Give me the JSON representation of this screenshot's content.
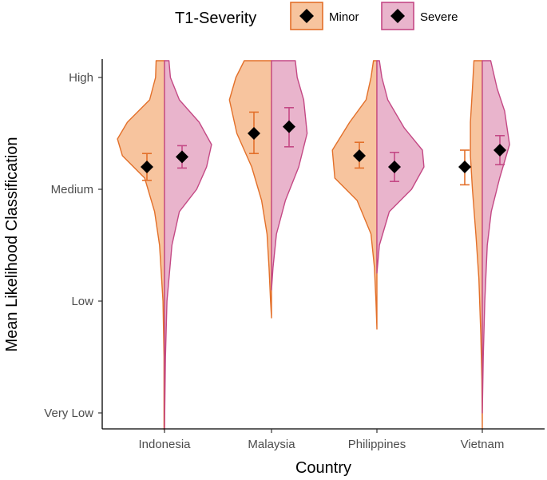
{
  "chart_data": {
    "type": "split-violin",
    "xlabel": "Country",
    "ylabel": "Mean Likelihood Classification",
    "categories": [
      "Indonesia",
      "Malaysia",
      "Philippines",
      "Vietnam"
    ],
    "y_ticks": [
      {
        "value": 1,
        "label": "Very Low"
      },
      {
        "value": 2,
        "label": "Low"
      },
      {
        "value": 3,
        "label": "Medium"
      },
      {
        "value": 4,
        "label": "High"
      }
    ],
    "ylim": [
      0.85,
      4.15
    ],
    "legend": {
      "title": "T1-Severity",
      "position": "top",
      "entries": [
        "Minor",
        "Severe"
      ]
    },
    "colors": {
      "Minor": {
        "fill": "#f7c49e",
        "stroke": "#e3702a",
        "errorbar": "#e3702a"
      },
      "Severe": {
        "fill": "#e9b4cc",
        "stroke": "#c44985",
        "errorbar": "#c44985"
      }
    },
    "series": [
      {
        "name": "Minor",
        "means": [
          3.2,
          3.5,
          3.3,
          3.2
        ],
        "ci_low": [
          3.08,
          3.32,
          3.19,
          3.04
        ],
        "ci_high": [
          3.32,
          3.69,
          3.42,
          3.35
        ],
        "violin_ymin": [
          0.85,
          1.85,
          1.75,
          0.85
        ],
        "violin_ymax": [
          4.15,
          4.15,
          4.15,
          4.15
        ],
        "density": [
          [
            [
              0.85,
              0.01
            ],
            [
              1.5,
              0.01
            ],
            [
              2.0,
              0.03
            ],
            [
              2.5,
              0.1
            ],
            [
              2.8,
              0.2
            ],
            [
              3.1,
              0.4
            ],
            [
              3.3,
              0.85
            ],
            [
              3.45,
              0.95
            ],
            [
              3.6,
              0.75
            ],
            [
              3.8,
              0.3
            ],
            [
              4.0,
              0.18
            ],
            [
              4.15,
              0.17
            ]
          ],
          [
            [
              1.85,
              0.0
            ],
            [
              2.0,
              0.02
            ],
            [
              2.3,
              0.05
            ],
            [
              2.6,
              0.09
            ],
            [
              2.9,
              0.2
            ],
            [
              3.2,
              0.4
            ],
            [
              3.5,
              0.7
            ],
            [
              3.8,
              0.85
            ],
            [
              4.0,
              0.72
            ],
            [
              4.15,
              0.55
            ]
          ],
          [
            [
              1.75,
              0.0
            ],
            [
              2.0,
              0.02
            ],
            [
              2.3,
              0.05
            ],
            [
              2.6,
              0.12
            ],
            [
              2.9,
              0.4
            ],
            [
              3.1,
              0.85
            ],
            [
              3.35,
              0.9
            ],
            [
              3.6,
              0.55
            ],
            [
              3.8,
              0.22
            ],
            [
              4.0,
              0.12
            ],
            [
              4.15,
              0.07
            ]
          ],
          [
            [
              0.85,
              0.0
            ],
            [
              1.3,
              0.01
            ],
            [
              1.7,
              0.03
            ],
            [
              2.2,
              0.07
            ],
            [
              2.6,
              0.13
            ],
            [
              3.0,
              0.2
            ],
            [
              3.3,
              0.24
            ],
            [
              3.6,
              0.24
            ],
            [
              3.9,
              0.2
            ],
            [
              4.15,
              0.17
            ]
          ]
        ]
      },
      {
        "name": "Severe",
        "means": [
          3.29,
          3.56,
          3.2,
          3.35
        ],
        "ci_low": [
          3.19,
          3.38,
          3.07,
          3.22
        ],
        "ci_high": [
          3.39,
          3.73,
          3.33,
          3.48
        ],
        "violin_ymin": [
          0.85,
          2.1,
          2.25,
          1.0
        ],
        "violin_ymax": [
          4.15,
          4.15,
          4.15,
          4.15
        ],
        "density": [
          [
            [
              0.85,
              0.0
            ],
            [
              1.5,
              0.02
            ],
            [
              2.0,
              0.05
            ],
            [
              2.5,
              0.15
            ],
            [
              2.8,
              0.3
            ],
            [
              3.0,
              0.65
            ],
            [
              3.2,
              0.85
            ],
            [
              3.4,
              0.95
            ],
            [
              3.6,
              0.7
            ],
            [
              3.8,
              0.3
            ],
            [
              4.0,
              0.12
            ],
            [
              4.15,
              0.09
            ]
          ],
          [
            [
              2.1,
              0.0
            ],
            [
              2.3,
              0.03
            ],
            [
              2.6,
              0.1
            ],
            [
              2.9,
              0.28
            ],
            [
              3.2,
              0.55
            ],
            [
              3.5,
              0.72
            ],
            [
              3.8,
              0.65
            ],
            [
              4.0,
              0.52
            ],
            [
              4.15,
              0.48
            ]
          ],
          [
            [
              2.25,
              0.0
            ],
            [
              2.5,
              0.05
            ],
            [
              2.8,
              0.25
            ],
            [
              3.0,
              0.7
            ],
            [
              3.2,
              0.95
            ],
            [
              3.35,
              0.92
            ],
            [
              3.55,
              0.55
            ],
            [
              3.8,
              0.22
            ],
            [
              4.0,
              0.1
            ],
            [
              4.15,
              0.05
            ]
          ],
          [
            [
              1.0,
              0.0
            ],
            [
              1.5,
              0.02
            ],
            [
              2.0,
              0.05
            ],
            [
              2.5,
              0.1
            ],
            [
              2.8,
              0.18
            ],
            [
              3.1,
              0.35
            ],
            [
              3.4,
              0.55
            ],
            [
              3.7,
              0.45
            ],
            [
              3.9,
              0.3
            ],
            [
              4.15,
              0.17
            ]
          ]
        ]
      }
    ]
  }
}
